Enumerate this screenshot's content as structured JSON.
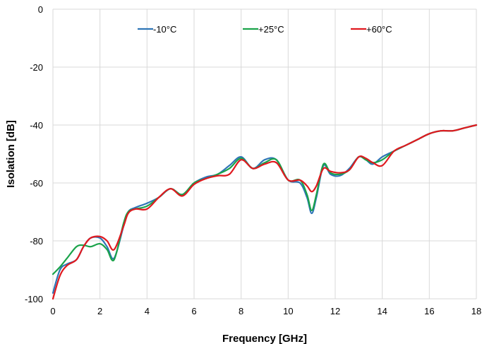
{
  "chart_data": {
    "type": "line",
    "title": "",
    "xlabel": "Frequency [GHz]",
    "ylabel": "Isolation [dB]",
    "xlim": [
      0,
      18
    ],
    "ylim": [
      -100,
      0
    ],
    "xticks": [
      0,
      2,
      4,
      6,
      8,
      10,
      12,
      14,
      16,
      18
    ],
    "yticks": [
      0,
      -20,
      -40,
      -60,
      -80,
      -100
    ],
    "grid": true,
    "legend_position": "top",
    "series": [
      {
        "name": "-10°C",
        "color": "#2e75b6",
        "x": [
          0,
          0.3,
          0.6,
          1.0,
          1.3,
          1.6,
          2.0,
          2.3,
          2.6,
          3.0,
          3.2,
          3.5,
          4.0,
          4.5,
          5.0,
          5.5,
          6.0,
          6.5,
          7.0,
          7.5,
          8.0,
          8.5,
          9.0,
          9.5,
          10.0,
          10.5,
          10.8,
          11.0,
          11.2,
          11.5,
          11.8,
          12.2,
          12.6,
          13.0,
          13.3,
          13.6,
          14.0,
          14.5,
          15.0,
          15.5,
          16.0,
          16.5,
          17.0,
          17.5,
          18.0
        ],
        "y": [
          -98,
          -90,
          -88,
          -86.5,
          -82,
          -79,
          -79,
          -82,
          -86,
          -75,
          -70,
          -68.5,
          -67,
          -65,
          -62,
          -64,
          -60,
          -58,
          -57,
          -54,
          -51,
          -55,
          -52,
          -52,
          -59,
          -60,
          -65,
          -70.5,
          -65,
          -54,
          -57,
          -57.5,
          -55,
          -51,
          -52,
          -53.5,
          -51,
          -49,
          -47,
          -45,
          -43,
          -42,
          -42,
          -41,
          -40
        ]
      },
      {
        "name": "+25°C",
        "color": "#1aa34a",
        "x": [
          0,
          0.3,
          0.6,
          1.0,
          1.3,
          1.6,
          2.0,
          2.3,
          2.6,
          3.0,
          3.2,
          3.5,
          4.0,
          4.5,
          5.0,
          5.5,
          6.0,
          6.5,
          7.0,
          7.5,
          8.0,
          8.5,
          9.0,
          9.5,
          10.0,
          10.5,
          10.8,
          11.0,
          11.2,
          11.5,
          11.8,
          12.2,
          12.6,
          13.0,
          13.3,
          13.6,
          14.0,
          14.5,
          15.0,
          15.5,
          16.0,
          16.5,
          17.0,
          17.5,
          18.0
        ],
        "y": [
          -91.5,
          -89,
          -86,
          -82,
          -81.5,
          -82,
          -81,
          -83,
          -86.5,
          -74,
          -70,
          -69,
          -68,
          -65,
          -62,
          -64,
          -60,
          -58.5,
          -57,
          -55,
          -51.5,
          -55,
          -53,
          -52,
          -59,
          -59,
          -64,
          -69.5,
          -64,
          -53.5,
          -56.5,
          -57,
          -55.5,
          -51,
          -52,
          -53,
          -52,
          -49,
          -47,
          -45,
          -43,
          -42,
          -42,
          -41,
          -40
        ]
      },
      {
        "name": "+60°C",
        "color": "#e0191f",
        "x": [
          0,
          0.3,
          0.6,
          1.0,
          1.3,
          1.6,
          2.0,
          2.3,
          2.6,
          3.0,
          3.2,
          3.5,
          4.0,
          4.5,
          5.0,
          5.5,
          6.0,
          6.5,
          7.0,
          7.5,
          8.0,
          8.5,
          9.0,
          9.5,
          10.0,
          10.5,
          10.8,
          11.0,
          11.2,
          11.5,
          11.8,
          12.2,
          12.6,
          13.0,
          13.3,
          13.6,
          14.0,
          14.5,
          15.0,
          15.5,
          16.0,
          16.5,
          17.0,
          17.5,
          18.0
        ],
        "y": [
          -100,
          -92,
          -88.5,
          -86.5,
          -82,
          -79,
          -78.5,
          -80,
          -83,
          -75,
          -70.5,
          -69,
          -69,
          -65,
          -62,
          -64.5,
          -60.5,
          -58.5,
          -57.5,
          -57,
          -52,
          -55,
          -53.5,
          -53,
          -59,
          -59,
          -61,
          -63,
          -61,
          -55,
          -56,
          -56.5,
          -55.5,
          -51,
          -51.5,
          -53,
          -54,
          -49,
          -47,
          -45,
          -43,
          -42,
          -42,
          -41,
          -40
        ]
      }
    ]
  }
}
